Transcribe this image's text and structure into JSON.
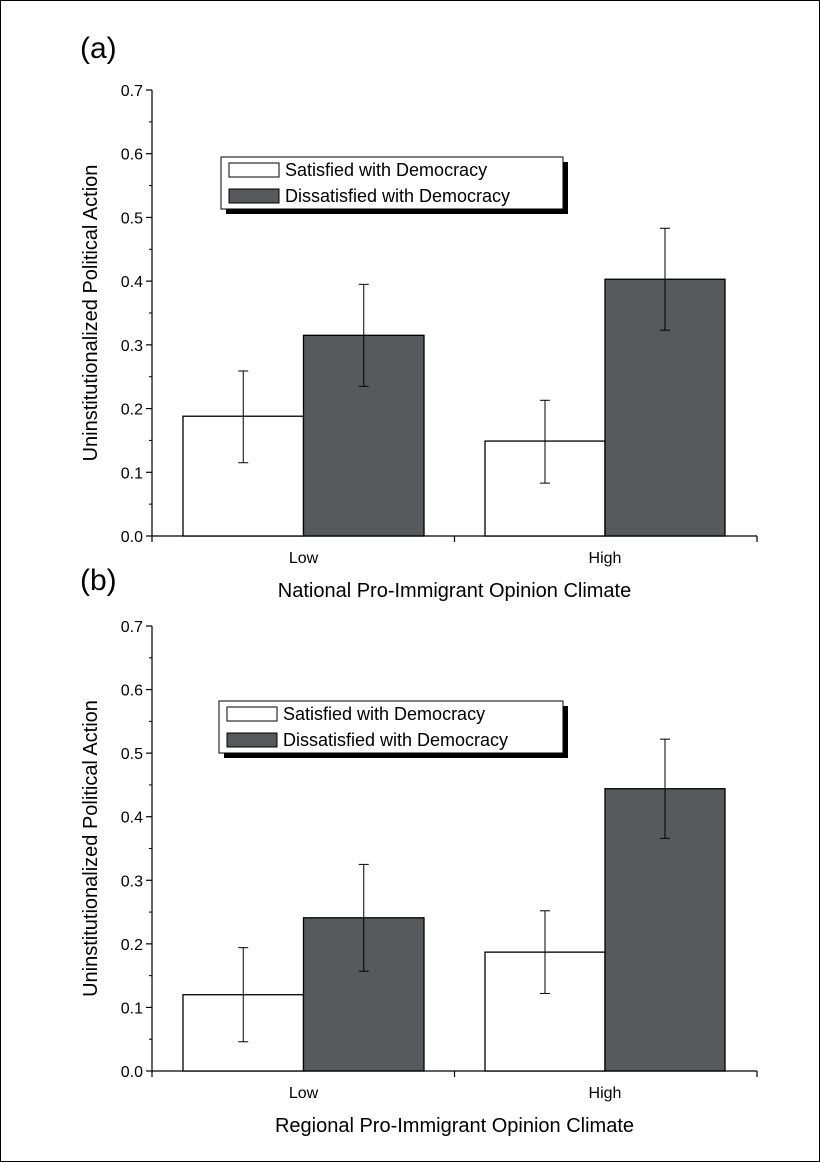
{
  "colors": {
    "satisfied_fill": "#ffffff",
    "dissatisfied_fill": "#58595b",
    "outline": "#000000"
  },
  "chart_data": [
    {
      "panel": "(a)",
      "type": "bar",
      "xlabel": "National Pro-Immigrant Opinion Climate",
      "ylabel": "Uninstitutionalized Political Action",
      "ylim": [
        0,
        0.7
      ],
      "yticks": [
        "0.0",
        "0.1",
        "0.2",
        "0.3",
        "0.4",
        "0.5",
        "0.6",
        "0.7"
      ],
      "categories": [
        "Low",
        "High"
      ],
      "legend_position": "top-left",
      "grid": false,
      "series": [
        {
          "name": "Satisfied with Democracy",
          "values": [
            0.188,
            0.149
          ],
          "err_low": [
            0.115,
            0.083
          ],
          "err_high": [
            0.259,
            0.213
          ]
        },
        {
          "name": "Dissatisfied with Democracy",
          "values": [
            0.315,
            0.403
          ],
          "err_low": [
            0.235,
            0.323
          ],
          "err_high": [
            0.395,
            0.483
          ]
        }
      ]
    },
    {
      "panel": "(b)",
      "type": "bar",
      "xlabel": "Regional Pro-Immigrant Opinion Climate",
      "ylabel": "Uninstitutionalized Political Action",
      "ylim": [
        0,
        0.7
      ],
      "yticks": [
        "0.0",
        "0.1",
        "0.2",
        "0.3",
        "0.4",
        "0.5",
        "0.6",
        "0.7"
      ],
      "categories": [
        "Low",
        "High"
      ],
      "legend_position": "top-left",
      "grid": false,
      "series": [
        {
          "name": "Satisfied with Democracy",
          "values": [
            0.12,
            0.187
          ],
          "err_low": [
            0.046,
            0.122
          ],
          "err_high": [
            0.194,
            0.252
          ]
        },
        {
          "name": "Dissatisfied with Democracy",
          "values": [
            0.241,
            0.444
          ],
          "err_low": [
            0.157,
            0.366
          ],
          "err_high": [
            0.325,
            0.522
          ]
        }
      ]
    }
  ]
}
